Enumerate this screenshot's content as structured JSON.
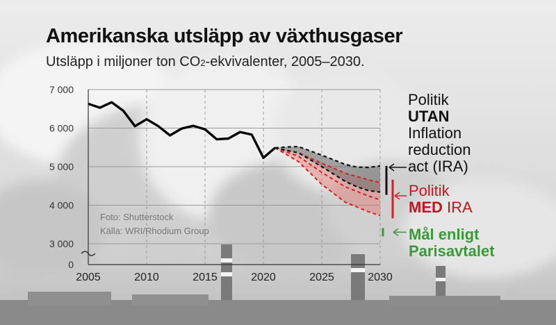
{
  "header": {
    "title": "Amerikanska utsläpp av växthusgaser",
    "subtitle_pre": "Utsläpp i miljoner ton CO",
    "subtitle_sub": "2",
    "subtitle_post": "-ekvivalenter, 2005–2030."
  },
  "credits": {
    "photo": "Foto: Shutterstock",
    "source": "Källa: WRI/Rhodium Group"
  },
  "legend": {
    "without_line1": "Politik",
    "without_line2": "UTAN",
    "without_line3": "Inflation",
    "without_line4": "reduction",
    "without_line5": "act (IRA)",
    "with_line1": "Politik",
    "with_bold": "MED",
    "with_rest": " IRA",
    "goal_line1": "Mål enligt",
    "goal_line2": "Parisavtalet"
  },
  "colors": {
    "historical": "#000000",
    "without_ira": "#111111",
    "with_ira": "#d42020",
    "paris_goal": "#3a9a3a",
    "with_ira_fill": "#e3736d",
    "without_ira_fill": "#666666"
  },
  "chart_data": {
    "type": "line",
    "title": "Amerikanska utsläpp av växthusgaser",
    "x_ticks": [
      2005,
      2010,
      2015,
      2020,
      2025,
      2030
    ],
    "y_ticks": [
      0,
      3000,
      4000,
      5000,
      6000,
      7000
    ],
    "y_tick_labels": [
      "0",
      "3 000",
      "4 000",
      "5 000",
      "6 000",
      "7 000"
    ],
    "xlim": [
      2005,
      2030
    ],
    "ylim": [
      3000,
      7000
    ],
    "y_axis_break": true,
    "grid": true,
    "series": [
      {
        "name": "historical",
        "x": [
          2005,
          2006,
          2007,
          2008,
          2009,
          2010,
          2011,
          2012,
          2013,
          2014,
          2015,
          2016,
          2017,
          2018,
          2019,
          2020,
          2021
        ],
        "y": [
          6630,
          6530,
          6670,
          6450,
          6050,
          6230,
          6050,
          5810,
          5990,
          6060,
          5970,
          5710,
          5730,
          5900,
          5830,
          5230,
          5490
        ]
      },
      {
        "name": "Politik UTAN Inflation reduction act (IRA)",
        "style": "dashed",
        "upper": {
          "x": [
            2021,
            2022,
            2023,
            2025,
            2027,
            2028,
            2029,
            2030
          ],
          "y": [
            5490,
            5510,
            5520,
            5300,
            5060,
            4990,
            4980,
            5020
          ]
        },
        "lower": {
          "x": [
            2021,
            2022,
            2023,
            2025,
            2027,
            2028,
            2029,
            2030
          ],
          "y": [
            5490,
            5420,
            5360,
            5000,
            4620,
            4480,
            4380,
            4340
          ]
        }
      },
      {
        "name": "Politik MED IRA",
        "style": "dashed",
        "lines": [
          {
            "x": [
              2021,
              2023,
              2025,
              2027,
              2029,
              2030
            ],
            "y": [
              5490,
              5360,
              5090,
              4830,
              4660,
              4590
            ]
          },
          {
            "x": [
              2021,
              2023,
              2025,
              2027,
              2029,
              2030
            ],
            "y": [
              5490,
              5270,
              4850,
              4480,
              4240,
              4140
            ]
          },
          {
            "x": [
              2021,
              2023,
              2025,
              2027,
              2029,
              2030
            ],
            "y": [
              5490,
              5130,
              4540,
              4080,
              3830,
              3730
            ]
          }
        ]
      },
      {
        "name": "Mål enligt Parisavtalet",
        "x": [
          2030
        ],
        "y": [
          3300
        ]
      }
    ]
  }
}
